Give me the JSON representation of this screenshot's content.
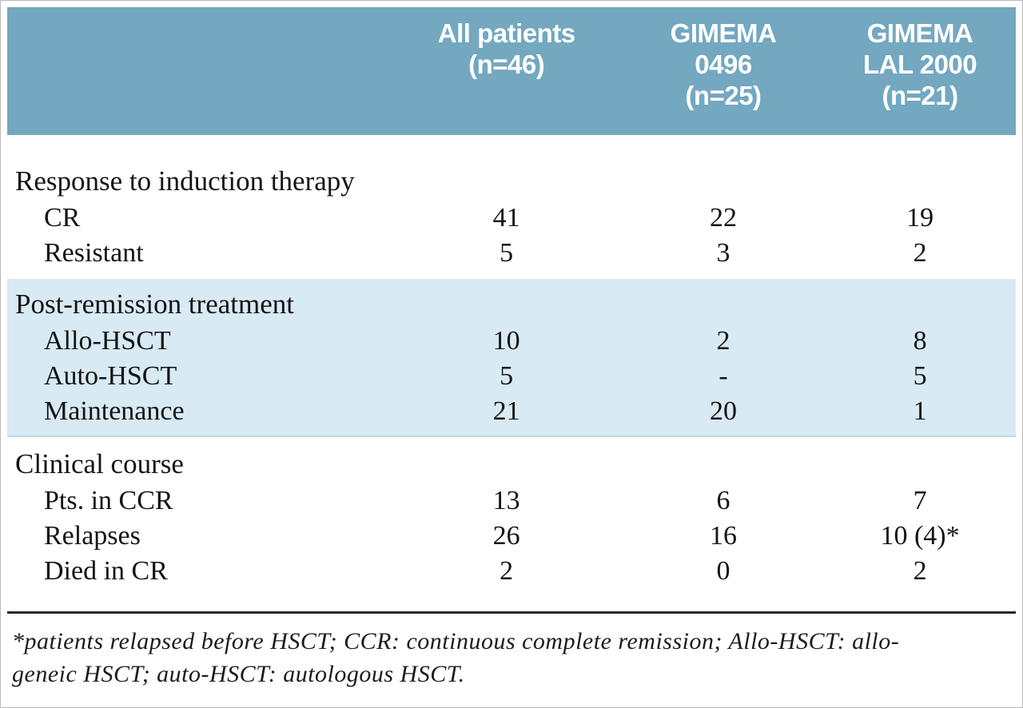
{
  "header": {
    "col0": "",
    "col1": "All patients\n(n=46)",
    "col2": "GIMEMA\n0496\n(n=25)",
    "col3": "GIMEMA\nLAL 2000\n(n=21)"
  },
  "sections": [
    {
      "title": "Response to induction therapy",
      "highlighted": false,
      "rows": [
        {
          "label": "CR",
          "v1": "41",
          "v2": "22",
          "v3": "19"
        },
        {
          "label": "Resistant",
          "v1": "5",
          "v2": "3",
          "v3": "2"
        }
      ]
    },
    {
      "title": "Post-remission treatment",
      "highlighted": true,
      "rows": [
        {
          "label": "Allo-HSCT",
          "v1": "10",
          "v2": "2",
          "v3": "8"
        },
        {
          "label": "Auto-HSCT",
          "v1": "5",
          "v2": "-",
          "v3": "5"
        },
        {
          "label": "Maintenance",
          "v1": "21",
          "v2": "20",
          "v3": "1"
        }
      ]
    },
    {
      "title": "Clinical course",
      "highlighted": false,
      "rows": [
        {
          "label": "Pts. in CCR",
          "v1": "13",
          "v2": "6",
          "v3": "7"
        },
        {
          "label": "Relapses",
          "v1": "26",
          "v2": "16",
          "v3": "10 (4)*"
        },
        {
          "label": "Died in CR",
          "v1": "2",
          "v2": "0",
          "v3": "2"
        }
      ]
    }
  ],
  "footnote": "*patients relapsed before HSCT; CCR: continuous complete remission; Allo-HSCT: allo-\ngeneic HSCT; auto-HSCT:  autologous HSCT.",
  "colors": {
    "header_bg": "#73a8c0",
    "highlight_bg": "#d8eaf3",
    "text": "#141414"
  }
}
